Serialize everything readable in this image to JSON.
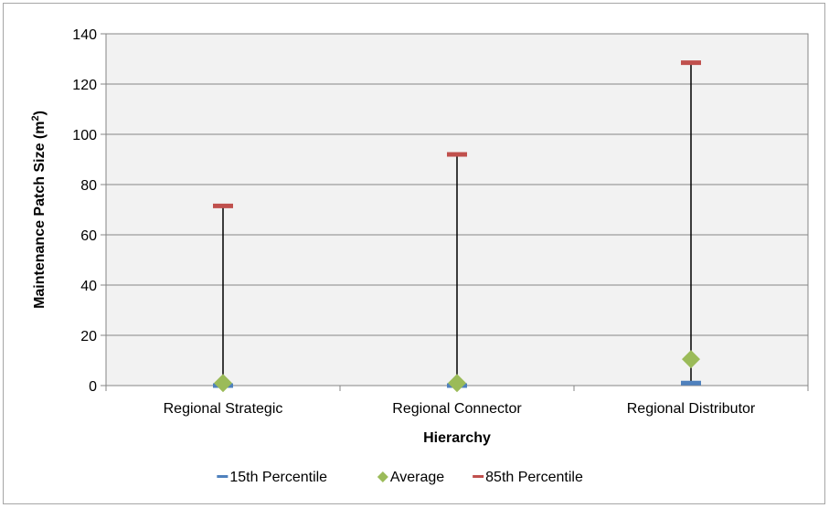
{
  "chart_data": {
    "type": "scatter",
    "title": "",
    "xlabel": "Hierarchy",
    "ylabel_main": "Maintenance Patch Size (m",
    "ylabel_sup": "2",
    "ylabel_end": ")",
    "categories": [
      "Regional Strategic",
      "Regional Connector",
      "Regional Distributor"
    ],
    "ylim": [
      0,
      140
    ],
    "yticks": [
      0,
      20,
      40,
      60,
      80,
      100,
      120,
      140
    ],
    "grid": true,
    "legend_position": "bottom",
    "series": [
      {
        "name": "15th Percentile",
        "marker": "dash",
        "color": "#4f81bd",
        "values": [
          0,
          0,
          1
        ]
      },
      {
        "name": "Average",
        "marker": "diamond",
        "color": "#9bbb59",
        "values": [
          1,
          1,
          10.5
        ]
      },
      {
        "name": "85th Percentile",
        "marker": "dash",
        "color": "#c0504d",
        "values": [
          71.5,
          92,
          128.5
        ]
      }
    ],
    "range_lines": {
      "from_series": 0,
      "to_series": 2,
      "color": "#000000"
    }
  }
}
